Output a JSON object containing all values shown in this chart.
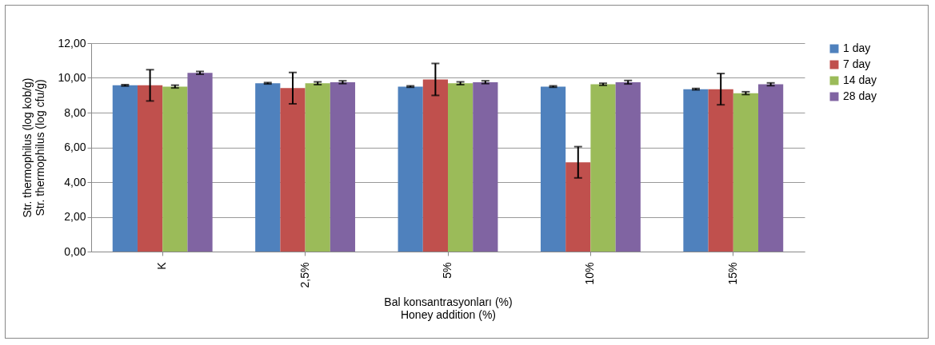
{
  "chart_data": {
    "type": "bar",
    "xlabel": "Bal konsantrasyonları (%)\nHoney addition (%)",
    "ylabel": "Str. thermophilus (log kob/g)\nStr. thermophilus (log cfu/g)",
    "categories": [
      "K",
      "2,5%",
      "5%",
      "10%",
      "15%"
    ],
    "series": [
      {
        "name": "1 day",
        "color": "#4f81bd",
        "values": [
          9.57,
          9.69,
          9.5,
          9.5,
          9.35
        ],
        "errors": [
          0.04,
          0.04,
          0.04,
          0.04,
          0.04
        ]
      },
      {
        "name": "7 day",
        "color": "#c0504d",
        "values": [
          9.57,
          9.41,
          9.91,
          5.14,
          9.35
        ],
        "errors": [
          0.9,
          0.9,
          0.92,
          0.9,
          0.9
        ]
      },
      {
        "name": "14 day",
        "color": "#9bbb59",
        "values": [
          9.5,
          9.69,
          9.69,
          9.63,
          9.12
        ],
        "errors": [
          0.08,
          0.08,
          0.08,
          0.06,
          0.08
        ]
      },
      {
        "name": "28 day",
        "color": "#8064a2",
        "values": [
          10.29,
          9.75,
          9.75,
          9.75,
          9.63
        ],
        "errors": [
          0.08,
          0.08,
          0.08,
          0.1,
          0.08
        ]
      }
    ],
    "ylim": [
      0,
      12
    ],
    "yticks": [
      {
        "value": 0,
        "label": "0,00"
      },
      {
        "value": 2,
        "label": "2,00"
      },
      {
        "value": 4,
        "label": "4,00"
      },
      {
        "value": 6,
        "label": "6,00"
      },
      {
        "value": 8,
        "label": "8,00"
      },
      {
        "value": 10,
        "label": "10,00"
      },
      {
        "value": 12,
        "label": "12,00"
      }
    ],
    "grid": "y",
    "legend": "right"
  }
}
